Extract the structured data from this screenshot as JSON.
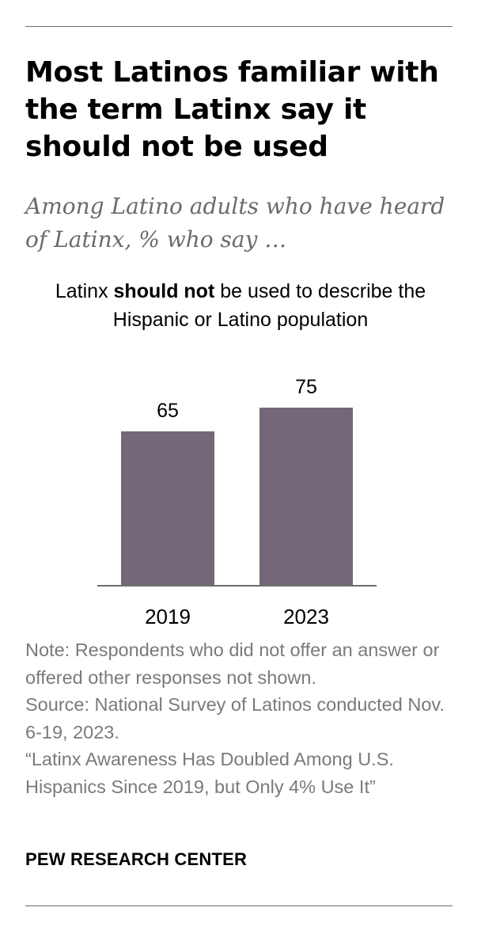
{
  "title": "Most Latinos familiar with the term Latinx say it should not be used",
  "subtitle": "Among Latino adults who have heard of Latinx, % who say …",
  "chart_heading": {
    "pre": "Latinx ",
    "emphasis": "should not",
    "post": " be used to describe the Hispanic or Latino population"
  },
  "chart_data": {
    "type": "bar",
    "title": "Latinx should not be used to describe the Hispanic or Latino population",
    "categories": [
      "2019",
      "2023"
    ],
    "values": [
      65,
      75
    ],
    "value_labels": [
      "65",
      "75"
    ],
    "xlabel": "",
    "ylabel": "",
    "ylim": [
      0,
      100
    ],
    "grid": false,
    "bar_color": "#736779"
  },
  "notes": {
    "note": "Note: Respondents who did not offer an answer or offered other responses not shown.",
    "source": "Source: National Survey of Latinos conducted Nov. 6-19, 2023.",
    "report": "“Latinx Awareness Has Doubled Among U.S. Hispanics Since 2019, but Only 4% Use It”"
  },
  "brand": "PEW RESEARCH CENTER"
}
